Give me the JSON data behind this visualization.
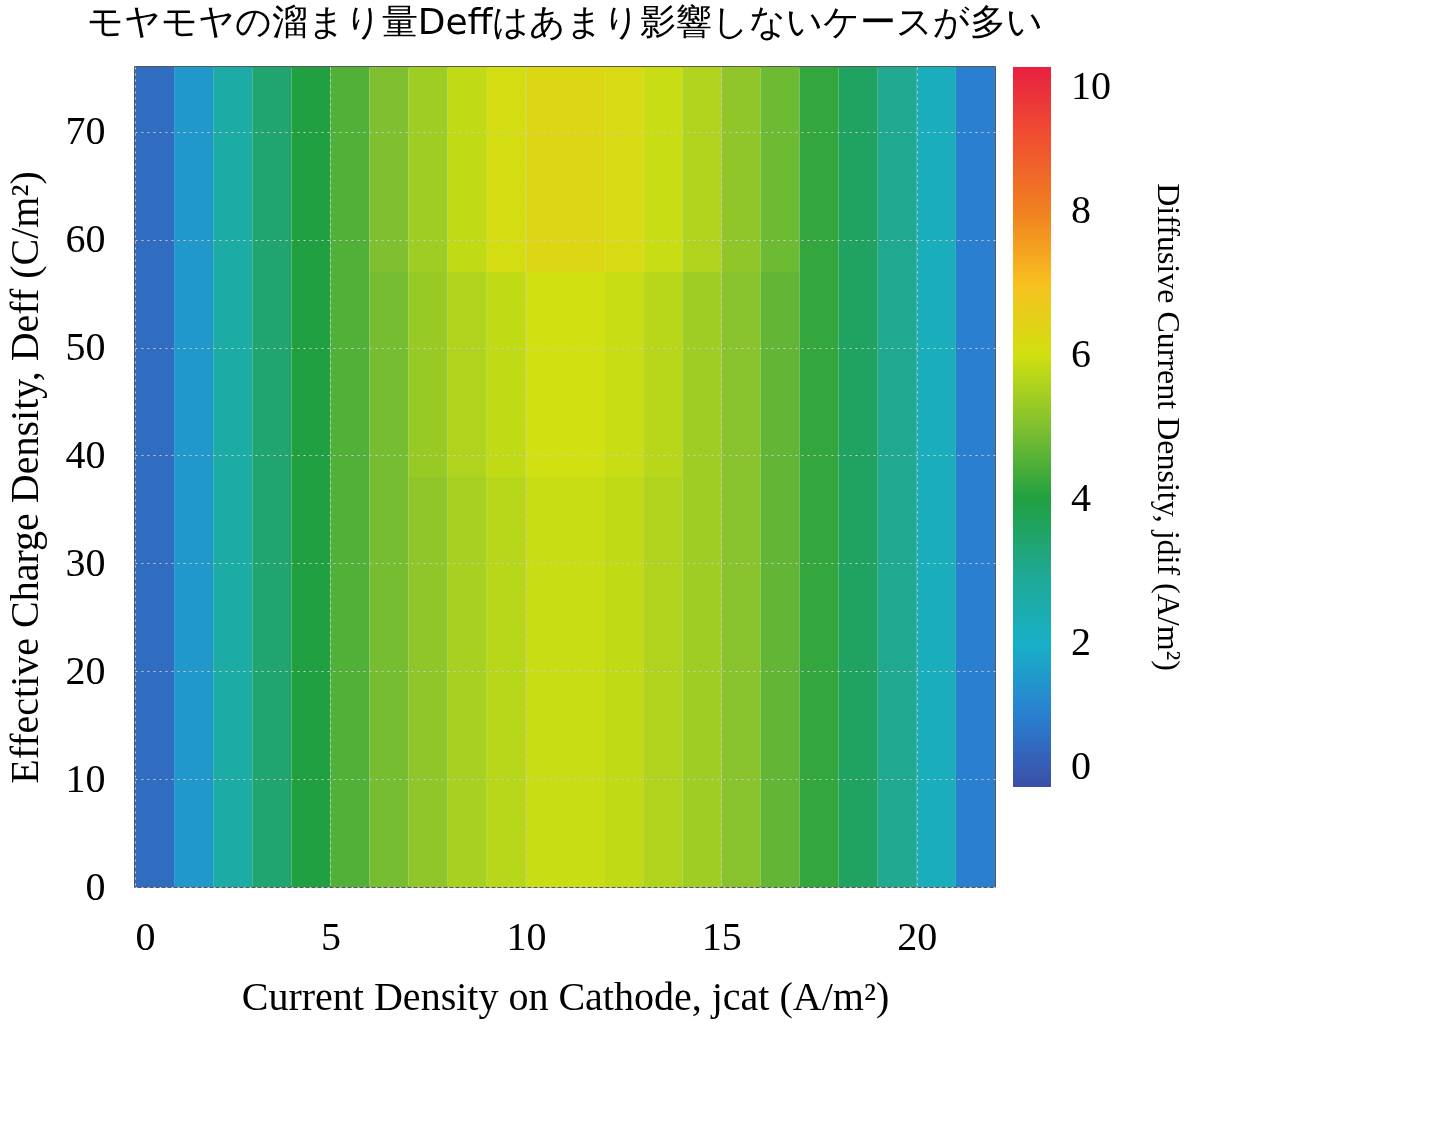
{
  "chart_data": {
    "type": "heatmap",
    "title": "モヤモヤの溜まり量Deffはあまり影響しないケースが多い",
    "xlabel": "Current Density on Cathode, jcat (A/m²)",
    "ylabel": "Effective Charge Density, Deff (C/m²)",
    "clabel": "Diffusive Current Density, jdif (A/m²)",
    "x": [
      0.5,
      1.5,
      2.5,
      3.5,
      4.5,
      5.5,
      6.5,
      7.5,
      8.5,
      9.5,
      10.5,
      11.5,
      12.5,
      13.5,
      14.5,
      15.5,
      16.5,
      17.5,
      18.5,
      19.5,
      20.5,
      21.5
    ],
    "y": [
      66.5,
      47.5,
      28.5,
      9.5
    ],
    "cells": [
      [
        0.6,
        1.5,
        2.6,
        3.4,
        4.0,
        4.5,
        5.0,
        5.4,
        5.8,
        6.1,
        6.3,
        6.3,
        6.2,
        5.9,
        5.6,
        5.2,
        4.8,
        4.2,
        3.6,
        3.0,
        2.2,
        1.0
      ],
      [
        0.6,
        1.5,
        2.6,
        3.4,
        4.0,
        4.5,
        4.9,
        5.3,
        5.6,
        5.8,
        6.0,
        6.0,
        5.9,
        5.7,
        5.4,
        5.1,
        4.7,
        4.2,
        3.6,
        3.0,
        2.2,
        1.0
      ],
      [
        0.6,
        1.5,
        2.6,
        3.4,
        4.0,
        4.5,
        4.9,
        5.2,
        5.5,
        5.7,
        5.9,
        5.9,
        5.8,
        5.6,
        5.4,
        5.1,
        4.7,
        4.2,
        3.6,
        3.0,
        2.2,
        1.0
      ],
      [
        0.6,
        1.5,
        2.6,
        3.4,
        4.0,
        4.5,
        4.9,
        5.2,
        5.5,
        5.7,
        5.9,
        5.9,
        5.8,
        5.6,
        5.4,
        5.1,
        4.7,
        4.2,
        3.6,
        3.0,
        2.2,
        1.0
      ]
    ],
    "xlim": [
      0,
      22
    ],
    "xticks": [
      0,
      5,
      10,
      15,
      20
    ],
    "ylim": [
      0,
      76
    ],
    "yticks": [
      0,
      10,
      20,
      30,
      40,
      50,
      60,
      70
    ],
    "clim": [
      0,
      10
    ],
    "cticks": [
      0,
      2,
      4,
      6,
      8,
      10
    ],
    "colors": [
      "#3a4fa8",
      "#2a7fd0",
      "#18b0c8",
      "#20a890",
      "#20a040",
      "#80c030",
      "#d0e010",
      "#f8c020",
      "#f08020",
      "#f05030",
      "#e82040"
    ],
    "grid": true
  }
}
